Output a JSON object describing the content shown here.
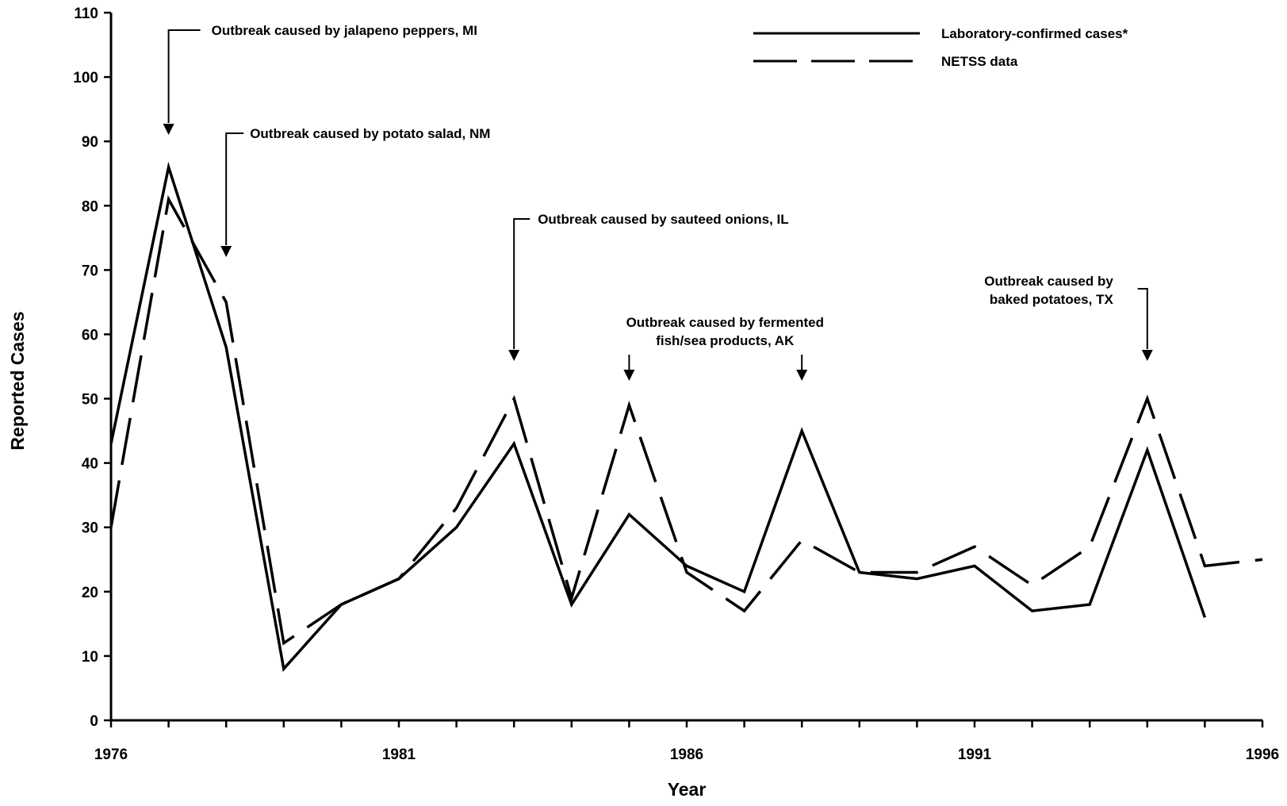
{
  "chart_data": {
    "type": "line",
    "title": "",
    "xlabel": "Year",
    "ylabel": "Reported Cases",
    "xlim": [
      1976,
      1996
    ],
    "ylim": [
      0,
      110
    ],
    "x_ticks": [
      "1976",
      "1981",
      "1986",
      "1991",
      "1996"
    ],
    "y_ticks": [
      "0",
      "10",
      "20",
      "30",
      "40",
      "50",
      "60",
      "70",
      "80",
      "90",
      "100",
      "110"
    ],
    "grid": false,
    "legend_position": "top-right",
    "series": [
      {
        "name": "Laboratory-confirmed cases*",
        "style": "solid",
        "x": [
          1976,
          1977,
          1978,
          1979,
          1980,
          1981,
          1982,
          1983,
          1984,
          1985,
          1986,
          1987,
          1988,
          1989,
          1990,
          1991,
          1992,
          1993,
          1994,
          1995
        ],
        "values": [
          43,
          86,
          58,
          8,
          18,
          22,
          30,
          43,
          18,
          32,
          24,
          20,
          45,
          23,
          22,
          24,
          17,
          18,
          42,
          16
        ]
      },
      {
        "name": "NETSS data",
        "style": "dashed",
        "x": [
          1976,
          1977,
          1978,
          1979,
          1980,
          1981,
          1982,
          1983,
          1984,
          1985,
          1986,
          1987,
          1988,
          1989,
          1990,
          1991,
          1992,
          1993,
          1994,
          1995,
          1996
        ],
        "values": [
          30,
          81,
          65,
          12,
          18,
          22,
          33,
          50,
          19,
          49,
          23,
          17,
          28,
          23,
          23,
          27,
          21,
          27,
          50,
          24,
          25
        ]
      }
    ],
    "annotations": [
      {
        "lines": [
          "Outbreak caused by jalapeno peppers, MI"
        ],
        "x": 1977
      },
      {
        "lines": [
          "Outbreak caused by potato salad, NM"
        ],
        "x": 1978
      },
      {
        "lines": [
          "Outbreak caused by sauteed onions, IL"
        ],
        "x": 1983
      },
      {
        "lines": [
          "Outbreak caused by fermented",
          "fish/sea products, AK"
        ],
        "x": [
          1985,
          1988
        ]
      },
      {
        "lines": [
          "Outbreak caused by",
          "baked potatoes, TX"
        ],
        "x": 1994
      }
    ]
  }
}
